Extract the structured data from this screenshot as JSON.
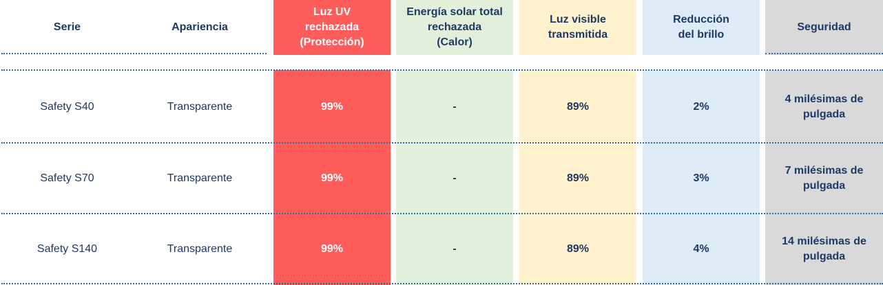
{
  "colors": {
    "uv": "#ff5c5c",
    "solar": "#e2efda",
    "visible": "#fff2cc",
    "glare": "#ddebf7",
    "security": "#d9d9d9",
    "text": "#1f3864",
    "rule": "#2e6aa6"
  },
  "headers": {
    "serie": "Serie",
    "apariencia": "Apariencia",
    "uv": [
      "Luz UV",
      "rechazada",
      "(Protección)"
    ],
    "solar": [
      "Energía solar total",
      "rechazada",
      "(Calor)"
    ],
    "visible": [
      "Luz visible",
      "transmitida"
    ],
    "glare": [
      "Reducción",
      "del brillo"
    ],
    "security": "Seguridad"
  },
  "rows": [
    {
      "serie": "Safety S40",
      "apariencia": "Transparente",
      "uv": "99%",
      "solar": "-",
      "visible": "89%",
      "glare": "2%",
      "security": [
        "4 milésimas de",
        "pulgada"
      ]
    },
    {
      "serie": "Safety S70",
      "apariencia": "Transparente",
      "uv": "99%",
      "solar": "-",
      "visible": "89%",
      "glare": "3%",
      "security": [
        "7 milésimas de",
        "pulgada"
      ]
    },
    {
      "serie": "Safety S140",
      "apariencia": "Transparente",
      "uv": "99%",
      "solar": "-",
      "visible": "89%",
      "glare": "4%",
      "security": [
        "14 milésimas de",
        "pulgada"
      ]
    }
  ]
}
